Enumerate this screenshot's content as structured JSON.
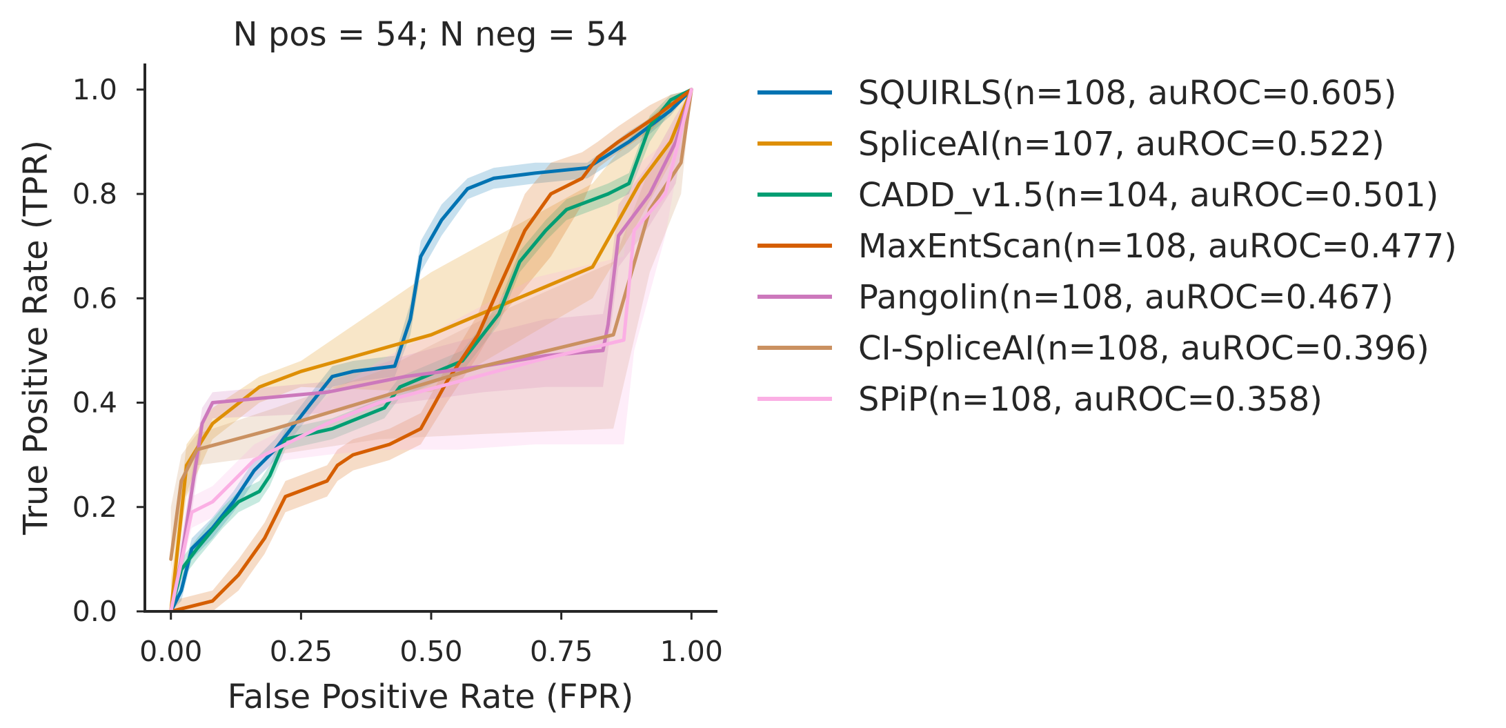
{
  "chart_data": {
    "type": "line",
    "title": "N pos = 54; N neg = 54",
    "xlabel": "False Positive Rate (FPR)",
    "ylabel": "True Positive Rate (TPR)",
    "xlim": [
      -0.05,
      1.05
    ],
    "ylim": [
      0.0,
      1.05
    ],
    "xticks": [
      0.0,
      0.25,
      0.5,
      0.75,
      1.0
    ],
    "xtick_labels": [
      "0.00",
      "0.25",
      "0.50",
      "0.75",
      "1.00"
    ],
    "yticks": [
      0.0,
      0.2,
      0.4,
      0.6,
      0.8,
      1.0
    ],
    "ytick_labels": [
      "0.0",
      "0.2",
      "0.4",
      "0.6",
      "0.8",
      "1.0"
    ],
    "grid": false,
    "legend_position": "outside-right",
    "series": [
      {
        "name": "SQUIRLS(n=108, auROC=0.605)",
        "color": "#0173b2",
        "x": [
          0.0,
          0.02,
          0.04,
          0.08,
          0.12,
          0.16,
          0.2,
          0.27,
          0.31,
          0.35,
          0.43,
          0.46,
          0.48,
          0.52,
          0.57,
          0.62,
          0.7,
          0.8,
          0.88,
          0.96,
          1.0
        ],
        "y": [
          0.0,
          0.04,
          0.12,
          0.16,
          0.21,
          0.27,
          0.31,
          0.4,
          0.45,
          0.46,
          0.47,
          0.56,
          0.68,
          0.75,
          0.81,
          0.83,
          0.84,
          0.85,
          0.9,
          0.96,
          1.0
        ],
        "lower": [
          0.0,
          0.02,
          0.1,
          0.14,
          0.19,
          0.25,
          0.29,
          0.38,
          0.43,
          0.44,
          0.45,
          0.53,
          0.65,
          0.72,
          0.79,
          0.81,
          0.82,
          0.83,
          0.88,
          0.95,
          1.0
        ],
        "upper": [
          0.02,
          0.06,
          0.14,
          0.18,
          0.23,
          0.29,
          0.33,
          0.42,
          0.47,
          0.48,
          0.49,
          0.59,
          0.71,
          0.78,
          0.83,
          0.85,
          0.86,
          0.86,
          0.92,
          0.97,
          1.0
        ]
      },
      {
        "name": "SpliceAI(n=107, auROC=0.522)",
        "color": "#de8f05",
        "x": [
          0.0,
          0.03,
          0.08,
          0.17,
          0.25,
          0.5,
          0.81,
          0.9,
          0.96,
          1.0
        ],
        "y": [
          0.0,
          0.28,
          0.36,
          0.43,
          0.46,
          0.53,
          0.66,
          0.82,
          0.9,
          1.0
        ],
        "lower": [
          0.0,
          0.22,
          0.33,
          0.4,
          0.43,
          0.42,
          0.6,
          0.75,
          0.86,
          1.0
        ],
        "upper": [
          0.06,
          0.32,
          0.39,
          0.45,
          0.48,
          0.65,
          0.82,
          0.93,
          0.98,
          1.0
        ]
      },
      {
        "name": "CADD_v1.5(n=104, auROC=0.501)",
        "color": "#029e73",
        "x": [
          0.0,
          0.02,
          0.05,
          0.1,
          0.13,
          0.17,
          0.19,
          0.22,
          0.31,
          0.41,
          0.44,
          0.56,
          0.63,
          0.67,
          0.72,
          0.76,
          0.84,
          0.88,
          0.92,
          0.96,
          1.0
        ],
        "y": [
          0.0,
          0.08,
          0.12,
          0.18,
          0.21,
          0.23,
          0.26,
          0.33,
          0.35,
          0.39,
          0.43,
          0.48,
          0.57,
          0.67,
          0.73,
          0.77,
          0.8,
          0.82,
          0.93,
          0.98,
          1.0
        ],
        "lower": [
          0.0,
          0.06,
          0.1,
          0.16,
          0.19,
          0.21,
          0.24,
          0.31,
          0.33,
          0.37,
          0.41,
          0.46,
          0.55,
          0.65,
          0.71,
          0.75,
          0.78,
          0.8,
          0.9,
          0.96,
          1.0
        ],
        "upper": [
          0.02,
          0.1,
          0.14,
          0.2,
          0.23,
          0.25,
          0.28,
          0.35,
          0.37,
          0.41,
          0.45,
          0.5,
          0.59,
          0.69,
          0.75,
          0.79,
          0.82,
          0.84,
          0.95,
          0.99,
          1.0
        ]
      },
      {
        "name": "MaxEntScan(n=108, auROC=0.477)",
        "color": "#d55e00",
        "x": [
          0.0,
          0.08,
          0.13,
          0.18,
          0.22,
          0.3,
          0.32,
          0.35,
          0.42,
          0.48,
          0.53,
          0.59,
          0.63,
          0.68,
          0.73,
          0.79,
          0.82,
          0.86,
          0.92,
          0.96,
          1.0
        ],
        "y": [
          0.0,
          0.02,
          0.07,
          0.14,
          0.22,
          0.25,
          0.28,
          0.3,
          0.32,
          0.35,
          0.44,
          0.53,
          0.62,
          0.73,
          0.8,
          0.83,
          0.87,
          0.9,
          0.94,
          0.97,
          1.0
        ],
        "lower": [
          0.0,
          0.0,
          0.04,
          0.11,
          0.19,
          0.22,
          0.25,
          0.27,
          0.29,
          0.32,
          0.4,
          0.49,
          0.56,
          0.62,
          0.68,
          0.78,
          0.85,
          0.88,
          0.92,
          0.96,
          1.0
        ],
        "upper": [
          0.02,
          0.04,
          0.1,
          0.17,
          0.25,
          0.28,
          0.31,
          0.33,
          0.35,
          0.38,
          0.47,
          0.57,
          0.68,
          0.8,
          0.86,
          0.88,
          0.9,
          0.93,
          0.97,
          0.99,
          1.0
        ]
      },
      {
        "name": "Pangolin(n=108, auROC=0.467)",
        "color": "#cc78bc",
        "x": [
          0.0,
          0.02,
          0.06,
          0.08,
          0.3,
          0.45,
          0.6,
          0.72,
          0.83,
          0.84,
          0.86,
          0.92,
          0.97,
          1.0
        ],
        "y": [
          0.0,
          0.1,
          0.36,
          0.4,
          0.42,
          0.45,
          0.47,
          0.49,
          0.5,
          0.55,
          0.72,
          0.8,
          0.9,
          1.0
        ],
        "lower": [
          0.0,
          0.06,
          0.32,
          0.37,
          0.38,
          0.4,
          0.42,
          0.43,
          0.43,
          0.5,
          0.66,
          0.74,
          0.82,
          1.0
        ],
        "upper": [
          0.02,
          0.14,
          0.39,
          0.42,
          0.44,
          0.49,
          0.53,
          0.56,
          0.57,
          0.62,
          0.78,
          0.86,
          0.95,
          1.0
        ]
      },
      {
        "name": "CI-SpliceAI(n=108, auROC=0.396)",
        "color": "#ca9161",
        "x": [
          0.0,
          0.02,
          0.05,
          0.2,
          0.4,
          0.6,
          0.85,
          0.92,
          0.98,
          1.0
        ],
        "y": [
          0.1,
          0.25,
          0.31,
          0.35,
          0.41,
          0.47,
          0.53,
          0.77,
          0.86,
          1.0
        ],
        "lower": [
          0.08,
          0.2,
          0.28,
          0.3,
          0.33,
          0.34,
          0.35,
          0.65,
          0.8,
          1.0
        ],
        "upper": [
          0.2,
          0.3,
          0.34,
          0.39,
          0.46,
          0.56,
          0.67,
          0.85,
          0.93,
          1.0
        ]
      },
      {
        "name": "SPiP(n=108, auROC=0.358)",
        "color": "#fbafe4",
        "x": [
          0.0,
          0.04,
          0.08,
          0.12,
          0.16,
          0.22,
          0.3,
          0.4,
          0.55,
          0.7,
          0.87,
          0.89,
          0.95,
          1.0
        ],
        "y": [
          0.0,
          0.19,
          0.21,
          0.25,
          0.29,
          0.32,
          0.36,
          0.4,
          0.44,
          0.48,
          0.52,
          0.73,
          0.8,
          1.0
        ],
        "lower": [
          0.0,
          0.16,
          0.18,
          0.22,
          0.26,
          0.29,
          0.3,
          0.31,
          0.31,
          0.32,
          0.32,
          0.5,
          0.72,
          1.0
        ],
        "upper": [
          0.02,
          0.22,
          0.24,
          0.28,
          0.32,
          0.35,
          0.41,
          0.48,
          0.56,
          0.64,
          0.68,
          0.85,
          0.9,
          1.0
        ]
      }
    ]
  }
}
